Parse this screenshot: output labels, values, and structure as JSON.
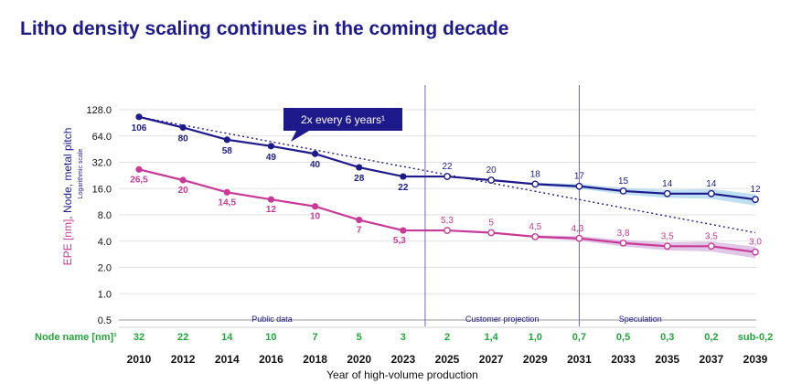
{
  "page": {
    "title": "Litho density scaling continues in the coming decade"
  },
  "chart_data": {
    "type": "line",
    "title": "Litho density scaling continues in the coming decade",
    "xlabel": "Year of high-volume production",
    "ylabel_parts": {
      "epe": "EPE [nm]",
      "sep": ", ",
      "node": "Node, metal pitch",
      "scale_note": "Logarithmic scale"
    },
    "y_scale": "log2",
    "ylim": [
      0.5,
      128
    ],
    "y_ticks": [
      {
        "value": 128,
        "label": "128.0"
      },
      {
        "value": 64,
        "label": "64.0"
      },
      {
        "value": 32,
        "label": "32.0"
      },
      {
        "value": 16,
        "label": "16.0"
      },
      {
        "value": 8,
        "label": "8.0"
      },
      {
        "value": 4,
        "label": "4.0"
      },
      {
        "value": 2,
        "label": "2.0"
      },
      {
        "value": 1,
        "label": "1.0"
      },
      {
        "value": 0.5,
        "label": "0.5"
      }
    ],
    "categories": [
      "2010",
      "2012",
      "2014",
      "2016",
      "2018",
      "2020",
      "2023",
      "2025",
      "2027",
      "2029",
      "2031",
      "2033",
      "2035",
      "2037",
      "2039"
    ],
    "node_row": {
      "label": "Node name [nm]¹",
      "values": [
        "32",
        "22",
        "14",
        "10",
        "7",
        "5",
        "3",
        "2",
        "1,4",
        "1,0",
        "0,7",
        "0,5",
        "0,3",
        "0,2",
        "sub-0,2"
      ]
    },
    "phases": [
      {
        "label": "Public data",
        "from_index": 0,
        "to_index": 6
      },
      {
        "label": "Customer projection",
        "from_index": 7,
        "to_index": 10
      },
      {
        "label": "Speculation",
        "from_index": 10,
        "to_index": 14
      }
    ],
    "series": [
      {
        "name": "Metal pitch",
        "color": "#1f1a8c",
        "band_color": "#a9d4ee",
        "values": [
          106,
          80,
          58,
          49,
          40,
          28,
          22,
          22,
          20,
          18,
          17,
          15,
          14,
          14,
          12
        ],
        "labels": [
          "106",
          "80",
          "58",
          "49",
          "40",
          "28",
          "22",
          "22",
          "20",
          "18",
          "17",
          "15",
          "14",
          "14",
          "12"
        ]
      },
      {
        "name": "EPE",
        "color": "#c93a96",
        "band_color": "#d6b4e0",
        "values": [
          26.5,
          20,
          14.5,
          12,
          10,
          7,
          5.3,
          5.3,
          5,
          4.5,
          4.3,
          3.8,
          3.5,
          3.5,
          3.0
        ],
        "labels": [
          "26,5",
          "20",
          "14,5",
          "12",
          "10",
          "7",
          "5,3",
          "5,3",
          "5",
          "4,5",
          "4,3",
          "3,8",
          "3,5",
          "3,5",
          "3,0"
        ]
      }
    ],
    "trend": {
      "label": "2x every 6 years¹",
      "start": {
        "year": "2010",
        "value": 106
      },
      "end": {
        "year": "2039",
        "value": 5
      }
    }
  }
}
